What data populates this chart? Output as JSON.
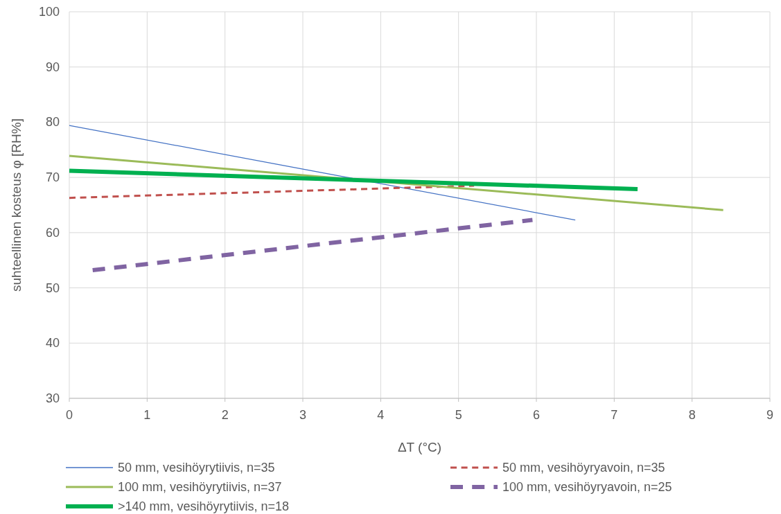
{
  "chart_data": {
    "type": "line",
    "xlabel": "ΔT (°C)",
    "ylabel": "suhteellinen kosteus φ [RH%]",
    "xlim": [
      0,
      9
    ],
    "xticks": [
      0,
      1,
      2,
      3,
      4,
      5,
      6,
      7,
      8,
      9
    ],
    "ylim": [
      30,
      100
    ],
    "yticks": [
      30,
      40,
      50,
      60,
      70,
      80,
      90,
      100
    ],
    "grid": true,
    "legend": "bottom",
    "marker": "none",
    "series": [
      {
        "name": "50 mm, vesihöyrytiivis, n=35",
        "color": "#4472c4",
        "line_style": "solid",
        "x": [
          0,
          6.5
        ],
        "values": [
          79.4,
          62.3
        ]
      },
      {
        "name": "50 mm, vesihöyryavoin, n=35",
        "color": "#c0504d",
        "line_style": "dashed",
        "x": [
          0,
          5.2
        ],
        "values": [
          66.3,
          68.5
        ]
      },
      {
        "name": "100 mm, vesihöyrytiivis, n=37",
        "color": "#9bbb59",
        "line_style": "solid",
        "x": [
          0,
          8.4
        ],
        "values": [
          73.9,
          64.1
        ]
      },
      {
        "name": "100 mm, vesihöyryavoin, n=25",
        "color": "#8064a2",
        "line_style": "dashed",
        "x": [
          0.3,
          5.95
        ],
        "values": [
          53.2,
          62.3
        ]
      },
      {
        "name": ">140 mm, vesihöyrytiivis, n=18",
        "color": "#00b050",
        "line_style": "solid",
        "x": [
          0,
          7.3
        ],
        "values": [
          71.2,
          67.9
        ]
      }
    ]
  }
}
